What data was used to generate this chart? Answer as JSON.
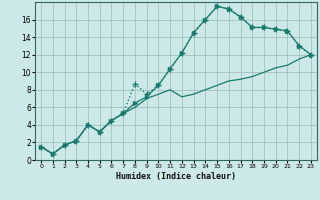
{
  "xlabel": "Humidex (Indice chaleur)",
  "bg_color": "#cce8e8",
  "grid_color": "#99bbbb",
  "line_color": "#1a7a6e",
  "xlim": [
    -0.5,
    23.5
  ],
  "ylim": [
    0,
    18
  ],
  "xticks": [
    0,
    1,
    2,
    3,
    4,
    5,
    6,
    7,
    8,
    9,
    10,
    11,
    12,
    13,
    14,
    15,
    16,
    17,
    18,
    19,
    20,
    21,
    22,
    23
  ],
  "yticks": [
    0,
    2,
    4,
    6,
    8,
    10,
    12,
    14,
    16
  ],
  "line1_x": [
    0,
    1,
    2,
    3,
    4,
    5,
    6,
    7,
    8,
    9,
    10,
    11,
    12,
    13,
    14,
    15,
    16,
    17,
    18,
    19,
    20,
    21,
    22,
    23
  ],
  "line1_y": [
    1.5,
    0.7,
    1.7,
    2.2,
    4.0,
    3.2,
    4.5,
    5.3,
    8.7,
    7.5,
    8.5,
    10.4,
    12.2,
    14.5,
    16.0,
    17.5,
    17.2,
    16.3,
    15.1,
    15.1,
    14.9,
    14.7,
    13.0,
    12.0
  ],
  "line2_x": [
    0,
    1,
    2,
    3,
    4,
    5,
    6,
    7,
    8,
    9,
    10,
    11,
    12,
    13,
    14,
    15,
    16,
    17,
    18,
    19,
    20,
    21,
    22,
    23
  ],
  "line2_y": [
    1.5,
    0.7,
    1.7,
    2.2,
    4.0,
    3.2,
    4.5,
    5.3,
    6.0,
    7.0,
    7.5,
    8.0,
    7.2,
    7.5,
    8.0,
    8.5,
    9.0,
    9.2,
    9.5,
    10.0,
    10.5,
    10.8,
    11.5,
    12.0
  ],
  "line3_x": [
    0,
    1,
    2,
    3,
    4,
    5,
    6,
    7,
    8,
    9,
    10,
    11,
    12,
    13,
    14,
    15,
    16,
    17,
    18,
    19,
    20,
    21,
    22,
    23
  ],
  "line3_y": [
    1.5,
    0.7,
    1.7,
    2.2,
    4.0,
    3.2,
    4.5,
    5.3,
    6.5,
    7.2,
    8.5,
    10.4,
    12.2,
    14.5,
    16.0,
    17.5,
    17.2,
    16.3,
    15.1,
    15.1,
    14.9,
    14.7,
    13.0,
    12.0
  ]
}
